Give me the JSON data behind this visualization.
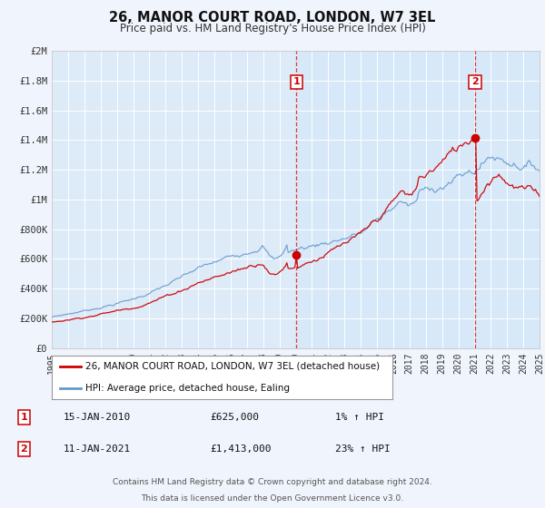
{
  "title": "26, MANOR COURT ROAD, LONDON, W7 3EL",
  "subtitle": "Price paid vs. HM Land Registry's House Price Index (HPI)",
  "hpi_label": "HPI: Average price, detached house, Ealing",
  "price_label": "26, MANOR COURT ROAD, LONDON, W7 3EL (detached house)",
  "footnote1": "Contains HM Land Registry data © Crown copyright and database right 2024.",
  "footnote2": "This data is licensed under the Open Government Licence v3.0.",
  "ann1_label": "1",
  "ann1_date_x": 2010.04,
  "ann1_y": 625000,
  "ann1_date_str": "15-JAN-2010",
  "ann1_price_str": "£625,000",
  "ann1_hpi_str": "1% ↑ HPI",
  "ann2_label": "2",
  "ann2_date_x": 2021.04,
  "ann2_y": 1413000,
  "ann2_date_str": "11-JAN-2021",
  "ann2_price_str": "£1,413,000",
  "ann2_hpi_str": "23% ↑ HPI",
  "xmin": 1995,
  "xmax": 2025,
  "ymin": 0,
  "ymax": 2000000,
  "yticks": [
    0,
    200000,
    400000,
    600000,
    800000,
    1000000,
    1200000,
    1400000,
    1600000,
    1800000,
    2000000
  ],
  "ytick_labels": [
    "£0",
    "£200K",
    "£400K",
    "£600K",
    "£800K",
    "£1M",
    "£1.2M",
    "£1.4M",
    "£1.6M",
    "£1.8M",
    "£2M"
  ],
  "xticks": [
    1995,
    1996,
    1997,
    1998,
    1999,
    2000,
    2001,
    2002,
    2003,
    2004,
    2005,
    2006,
    2007,
    2008,
    2009,
    2010,
    2011,
    2012,
    2013,
    2014,
    2015,
    2016,
    2017,
    2018,
    2019,
    2020,
    2021,
    2022,
    2023,
    2024,
    2025
  ],
  "bg_color": "#f0f4fc",
  "plot_bg": "#ddeaf8",
  "grid_color": "#ffffff",
  "red_color": "#cc0000",
  "blue_color": "#6699cc",
  "title_color": "#111111",
  "sub_color": "#333333",
  "ann_box_color": "#cc0000",
  "legend_border": "#999999",
  "text_color": "#333333"
}
